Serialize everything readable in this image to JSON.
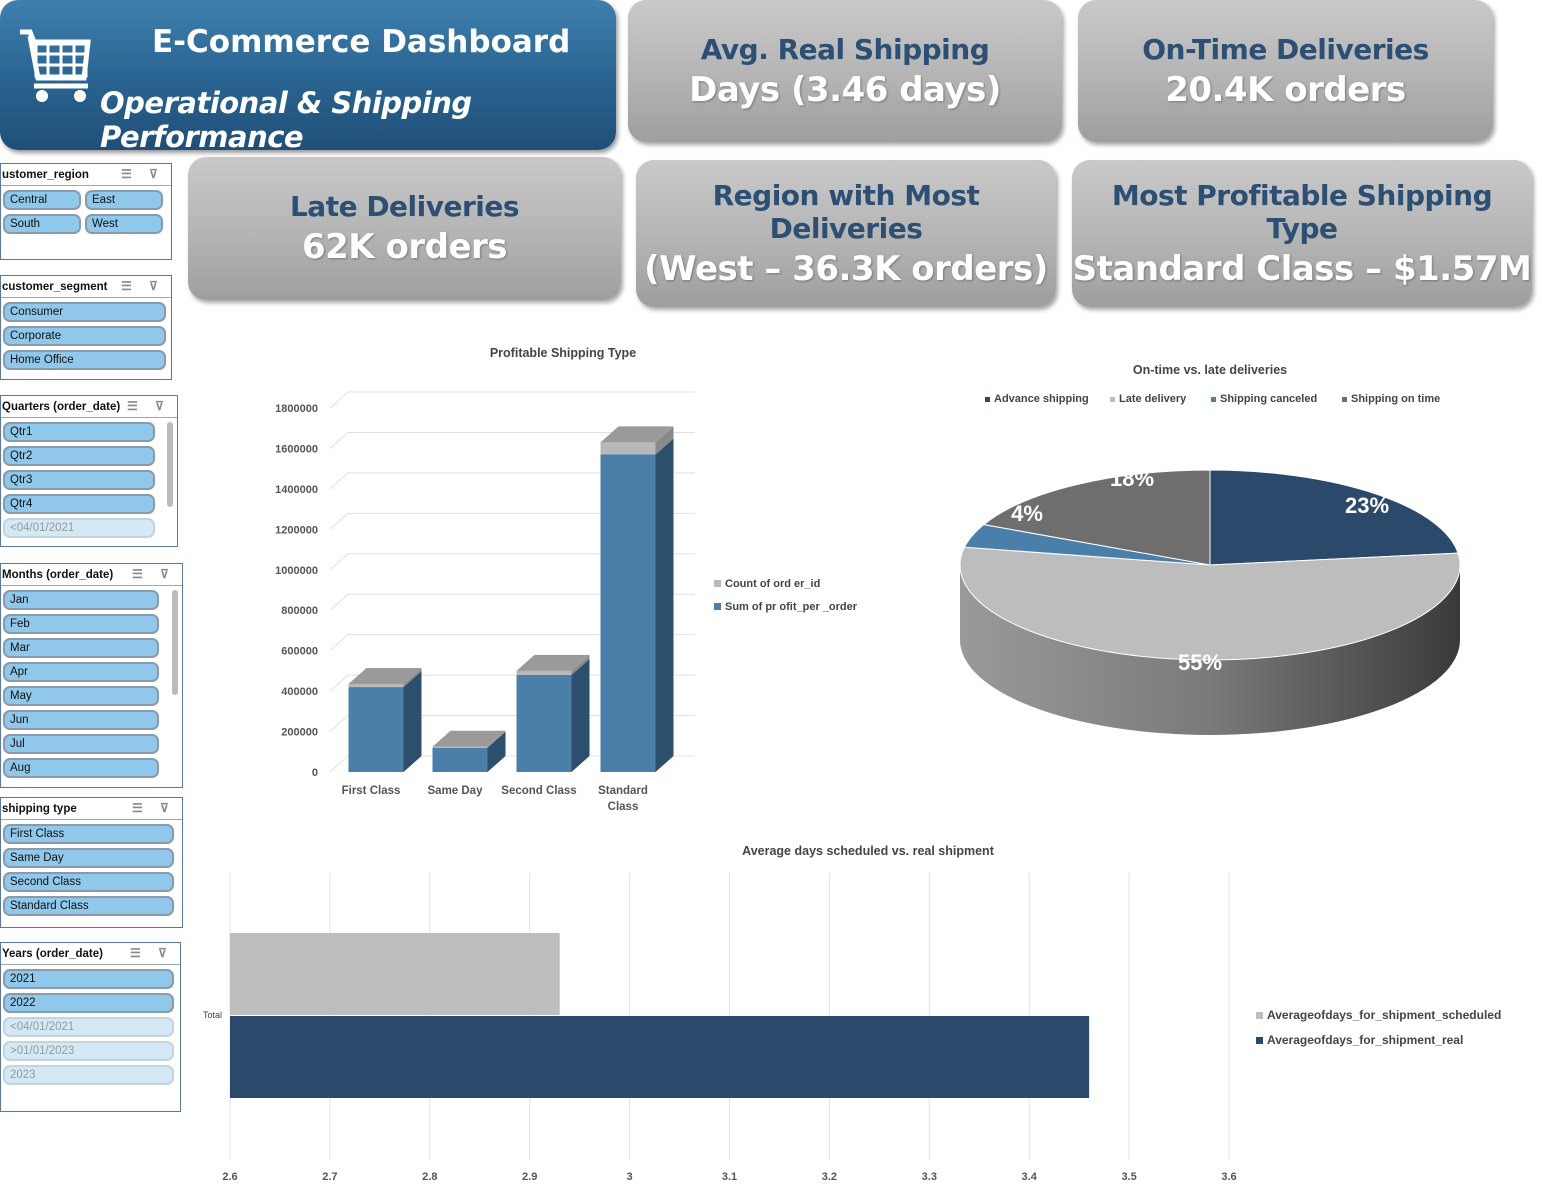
{
  "header": {
    "title": "E-Commerce Dashboard",
    "subtitle": "Operational & Shipping Performance",
    "icon": "shopping-cart-icon"
  },
  "kpis": [
    {
      "line1": "Avg. Real Shipping",
      "line2": "Days (3.46 days)"
    },
    {
      "line1": "On-Time Deliveries",
      "line2": "20.4K orders"
    },
    {
      "line1": "Late Deliveries",
      "line2": "62K orders"
    },
    {
      "line1": "Region with Most Deliveries",
      "line2": "(West – 36.3K orders)"
    },
    {
      "line1": "Most Profitable Shipping Type",
      "line2": "Standard Class – $1.57M"
    }
  ],
  "slicers": [
    {
      "title": "ustomer_region",
      "items": [
        {
          "label": "Central"
        },
        {
          "label": "East"
        },
        {
          "label": "South"
        },
        {
          "label": "West"
        }
      ]
    },
    {
      "title": "customer_segment",
      "items": [
        {
          "label": "Consumer"
        },
        {
          "label": "Corporate"
        },
        {
          "label": "Home Office"
        }
      ]
    },
    {
      "title": "Quarters (order_date)",
      "items": [
        {
          "label": "Qtr1"
        },
        {
          "label": "Qtr2"
        },
        {
          "label": "Qtr3"
        },
        {
          "label": "Qtr4"
        },
        {
          "label": "<04/01/2021",
          "disabled": true
        }
      ]
    },
    {
      "title": "Months (order_date)",
      "items": [
        {
          "label": "Jan"
        },
        {
          "label": "Feb"
        },
        {
          "label": "Mar"
        },
        {
          "label": "Apr"
        },
        {
          "label": "May"
        },
        {
          "label": "Jun"
        },
        {
          "label": "Jul"
        },
        {
          "label": "Aug"
        }
      ]
    },
    {
      "title": "shipping type",
      "items": [
        {
          "label": "First Class"
        },
        {
          "label": "Same Day"
        },
        {
          "label": "Second Class"
        },
        {
          "label": "Standard Class"
        }
      ]
    },
    {
      "title": "Years (order_date)",
      "items": [
        {
          "label": "2021"
        },
        {
          "label": "2022"
        },
        {
          "label": "<04/01/2021",
          "disabled": true
        },
        {
          "label": ">01/01/2023",
          "disabled": true
        },
        {
          "label": "2023",
          "disabled": true
        }
      ]
    }
  ],
  "chart_data": [
    {
      "type": "bar",
      "stacked": true,
      "three_d": true,
      "title": "Profitable Shipping Type",
      "categories": [
        "First Class",
        "Same Day",
        "Second Class",
        "Standard Class"
      ],
      "series": [
        {
          "name": "Sum of pr ofit_per _order",
          "color": "#4a7faa",
          "values": [
            420000,
            120000,
            480000,
            1570000
          ]
        },
        {
          "name": "Count of ord er_id",
          "color": "#b8b8b8",
          "values": [
            15000,
            5000,
            20000,
            60000
          ]
        }
      ],
      "ylim": [
        0,
        1800000
      ],
      "yticks": [
        "0",
        "200000",
        "400000",
        "600000",
        "800000",
        "1000000",
        "1200000",
        "1400000",
        "1600000",
        "1800000"
      ],
      "legend": "right",
      "grid": true
    },
    {
      "type": "pie",
      "three_d": true,
      "title": "On-time vs. late deliveries",
      "legend": "top",
      "slices": [
        {
          "name": "Advance shipping",
          "value": 23,
          "label": "23%",
          "color": "#2b4a6b"
        },
        {
          "name": "Late delivery",
          "value": 55,
          "label": "55%",
          "color": "#bdbdbd"
        },
        {
          "name": "Shipping canceled",
          "value": 4,
          "label": "4%",
          "color": "#4a7faa"
        },
        {
          "name": "Shipping on time",
          "value": 18,
          "label": "18%",
          "color": "#6e6e6e"
        }
      ]
    },
    {
      "type": "bar",
      "orientation": "horizontal",
      "title": "Average days scheduled vs. real shipment",
      "categories": [
        "Total"
      ],
      "series": [
        {
          "name": "Averageofdays_for_shipment_scheduled",
          "color": "#bdbdbd",
          "values": [
            2.93
          ]
        },
        {
          "name": "Averageofdays_for_shipment_real",
          "color": "#2b4a6b",
          "values": [
            3.46
          ]
        }
      ],
      "xlim": [
        2.6,
        3.6
      ],
      "xticks": [
        "2.6",
        "2.7",
        "2.8",
        "2.9",
        "3",
        "3.1",
        "3.2",
        "3.3",
        "3.4",
        "3.5",
        "3.6"
      ],
      "legend": "right",
      "grid": true
    }
  ]
}
